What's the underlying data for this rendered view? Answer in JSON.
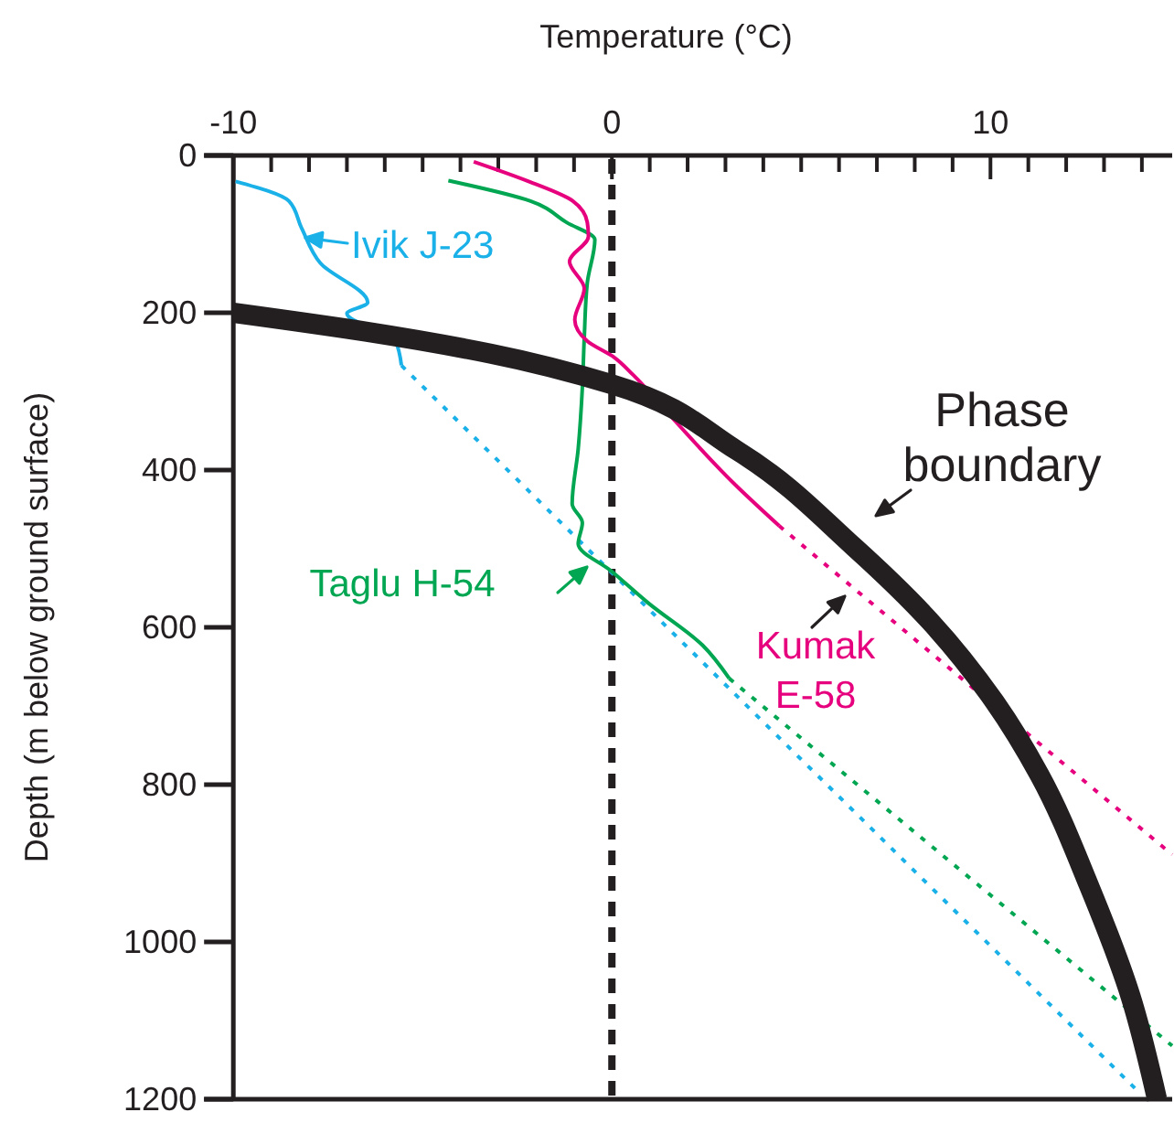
{
  "chart_data": {
    "type": "line",
    "xlabel": "Temperature (°C)",
    "ylabel": "Depth (m below ground surface)",
    "xlim": [
      -10,
      14.8
    ],
    "xticks": [
      -10,
      {
        "value": -9,
        "label": null
      },
      {
        "value": -8,
        "label": null
      },
      {
        "value": -7,
        "label": null
      },
      {
        "value": -6,
        "label": null
      },
      {
        "value": -5,
        "label": null
      },
      {
        "value": -4,
        "label": null
      },
      {
        "value": -3,
        "label": null
      },
      {
        "value": -2,
        "label": null
      },
      {
        "value": -1,
        "label": null
      },
      0,
      {
        "value": 1,
        "label": null
      },
      {
        "value": 2,
        "label": null
      },
      {
        "value": 3,
        "label": null
      },
      {
        "value": 4,
        "label": null
      },
      {
        "value": 5,
        "label": null
      },
      {
        "value": 6,
        "label": null
      },
      {
        "value": 7,
        "label": null
      },
      {
        "value": 8,
        "label": null
      },
      {
        "value": 9,
        "label": null
      },
      10,
      {
        "value": 11,
        "label": null
      },
      {
        "value": 12,
        "label": null
      },
      {
        "value": 13,
        "label": null
      },
      {
        "value": 14,
        "label": null
      }
    ],
    "ylim": [
      1200,
      0
    ],
    "yticks": [
      0,
      200,
      400,
      600,
      800,
      1000,
      1200
    ],
    "ref_lines": [
      {
        "axis": "x",
        "value": 0,
        "color": "#231f20",
        "line_style": "dashed"
      }
    ],
    "series": [
      {
        "name": "Ivik J-23",
        "color": "#1ab0e8",
        "line_style": "solid",
        "x": [
          -9.94,
          -8.53,
          -8.2,
          -7.7,
          -6.45,
          -7.0,
          -5.72,
          -5.56
        ],
        "values": [
          33,
          58,
          92,
          137,
          187,
          201,
          236,
          267
        ]
      },
      {
        "color": "#1ab0e8",
        "line_style": "dotted",
        "x": [
          -5.56,
          13.9
        ],
        "values": [
          267,
          1190
        ]
      },
      {
        "name": "Taglu H-54",
        "color": "#00a651",
        "line_style": "solid",
        "x": [
          -4.32,
          -2.15,
          -1.2,
          -0.45,
          -0.65,
          -0.73,
          -0.78,
          -0.89,
          -1.05,
          -0.78,
          -0.89,
          0,
          0.96,
          2.4,
          3.1
        ],
        "values": [
          32,
          58,
          85,
          107,
          162,
          232,
          295,
          373,
          443,
          467,
          494,
          529,
          569,
          623,
          665
        ]
      },
      {
        "color": "#00a651",
        "line_style": "dotted",
        "x": [
          3.1,
          14.8
        ],
        "values": [
          665,
          1132
        ]
      },
      {
        "name": "Kumak E-58",
        "color": "#e6007e",
        "line_style": "solid",
        "x": [
          -3.65,
          -2.2,
          -1.03,
          -0.65,
          -0.62,
          -1.12,
          -0.73,
          -0.98,
          -0.65,
          0.07,
          0.56,
          1.6,
          3.2,
          4.42
        ],
        "values": [
          8,
          33,
          58,
          85,
          103,
          135,
          169,
          209,
          236,
          257,
          279,
          334,
          416,
          471
        ]
      },
      {
        "color": "#e6007e",
        "line_style": "dotted",
        "x": [
          4.42,
          14.8
        ],
        "values": [
          471,
          889
        ]
      },
      {
        "name": "Phase boundary",
        "color": "#231f20",
        "line_style": "solid",
        "x": [
          -10,
          -6.5,
          -3.2,
          0,
          3.3,
          6.4,
          8.4,
          10.1,
          11.3,
          12.6,
          13.7,
          14.4
        ],
        "values": [
          200,
          224,
          252,
          291,
          375,
          498,
          592,
          694,
          788,
          928,
          1069,
          1200
        ]
      }
    ]
  }
}
